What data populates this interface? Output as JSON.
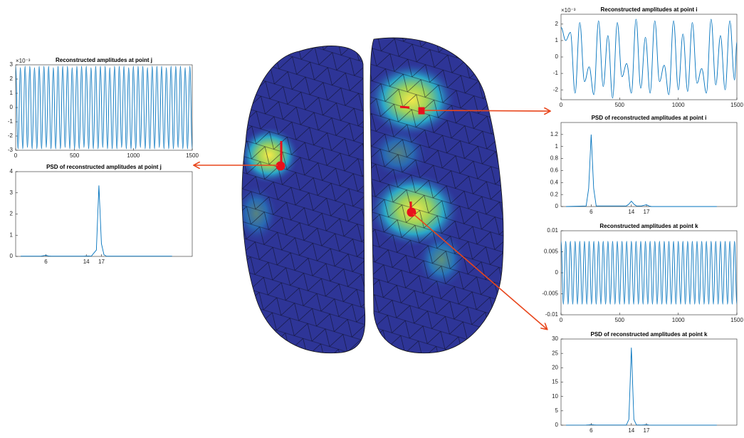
{
  "chart_data": [
    {
      "type": "line",
      "title": "Reconstructed amplitudes at point j",
      "y_exponent_label": "×10⁻³",
      "color": "#0072bd",
      "x": [
        0,
        20,
        40,
        60,
        80,
        100,
        120,
        140,
        160,
        180,
        200,
        220,
        240,
        260,
        280,
        300,
        320,
        340,
        360,
        380,
        400,
        420,
        440,
        460,
        480,
        500,
        520,
        540,
        560,
        580,
        600,
        620,
        640,
        660,
        680,
        700,
        720,
        740,
        760,
        780,
        800,
        820,
        840,
        860,
        880,
        900,
        920,
        940,
        960,
        980,
        1000,
        1020,
        1040,
        1060,
        1080,
        1100,
        1120,
        1140,
        1160,
        1180,
        1200,
        1220,
        1240,
        1260,
        1280,
        1300,
        1320,
        1340,
        1360,
        1380,
        1400,
        1420,
        1440,
        1460,
        1480,
        1500
      ],
      "values": [
        2.9,
        -2.9,
        2.8,
        -2.9,
        2.9,
        -2.8,
        2.9,
        -2.9,
        2.8,
        -2.9,
        2.9,
        -2.9,
        2.9,
        -2.8,
        2.9,
        -2.9,
        2.8,
        -2.9,
        2.9,
        -2.9,
        2.9,
        -2.8,
        2.9,
        -2.9,
        2.8,
        -2.9,
        2.9,
        -2.9,
        2.9,
        -2.8,
        2.9,
        -2.9,
        2.8,
        -2.9,
        2.9,
        -2.9,
        2.9,
        -2.8,
        2.9,
        -2.9,
        2.8,
        -2.9,
        2.9,
        -2.9,
        2.9,
        -2.8,
        2.9,
        -2.9,
        2.8,
        -2.9,
        2.9,
        -2.9,
        2.9,
        -2.8,
        2.9,
        -2.9,
        2.8,
        -2.9,
        2.9,
        -2.9,
        2.9,
        -2.8,
        2.9,
        -2.9,
        2.8,
        -2.9,
        2.9,
        -2.9,
        2.9,
        -2.8,
        2.9,
        -2.9,
        2.8,
        -2.9,
        2.9,
        -2.9
      ],
      "xlim": [
        0,
        1500
      ],
      "xticks": [
        0,
        500,
        1000,
        1500
      ],
      "ylim": [
        -3,
        3
      ],
      "yticks": [
        -3,
        -2,
        -1,
        0,
        1,
        2,
        3
      ]
    },
    {
      "type": "line",
      "title": "PSD of reconstructed amplitudes at point j",
      "color": "#0072bd",
      "x": [
        1,
        5,
        5.5,
        6,
        6.5,
        7,
        13,
        13.5,
        14,
        14.5,
        15,
        16,
        16.5,
        17,
        17.5,
        18,
        31
      ],
      "values": [
        0.01,
        0.01,
        0.03,
        0.05,
        0.02,
        0.01,
        0.01,
        0.01,
        0.02,
        0.02,
        0.01,
        0.3,
        3.35,
        0.6,
        0.08,
        0.01,
        0.01
      ],
      "xlim": [
        0,
        35
      ],
      "xticks": [
        6,
        14,
        17
      ],
      "ylim": [
        0,
        4
      ],
      "yticks": [
        0,
        1,
        2,
        3,
        4
      ]
    },
    {
      "type": "line",
      "title": "Reconstructed amplitudes at point i",
      "y_exponent_label": "×10⁻³",
      "color": "#0072bd",
      "x": [
        0,
        40,
        80,
        120,
        160,
        200,
        240,
        280,
        320,
        360,
        400,
        440,
        480,
        520,
        560,
        600,
        640,
        680,
        720,
        760,
        800,
        840,
        880,
        920,
        960,
        1000,
        1040,
        1080,
        1120,
        1160,
        1200,
        1240,
        1280,
        1320,
        1360,
        1400,
        1440,
        1480,
        1500
      ],
      "values": [
        1.8,
        1.0,
        1.5,
        -2.2,
        2.1,
        -1.5,
        -0.6,
        -2.3,
        2.2,
        -1.8,
        1.3,
        -2.5,
        2.1,
        -1.2,
        -0.4,
        -2.2,
        2.3,
        -1.9,
        1.2,
        -2.2,
        2.2,
        -1.5,
        -0.5,
        -2.3,
        2.2,
        -2.0,
        1.4,
        -2.1,
        2.1,
        -1.6,
        -0.7,
        -2.2,
        2.3,
        -1.7,
        1.3,
        -2.0,
        2.2,
        -1.4,
        0.9
      ],
      "xlim": [
        0,
        1500
      ],
      "xticks": [
        0,
        500,
        1000,
        1500
      ],
      "ylim": [
        -2.6,
        2.6
      ],
      "yticks": [
        -2,
        -1,
        0,
        1,
        2
      ]
    },
    {
      "type": "line",
      "title": "PSD of reconstructed amplitudes at point i",
      "color": "#0072bd",
      "x": [
        1,
        5,
        5.5,
        6,
        6.5,
        7,
        13,
        13.5,
        14,
        14.5,
        15,
        16,
        16.5,
        17,
        17.5,
        18,
        31
      ],
      "values": [
        0,
        0.01,
        0.3,
        1.2,
        0.3,
        0.01,
        0.01,
        0.04,
        0.09,
        0.04,
        0.01,
        0.01,
        0.02,
        0.03,
        0.01,
        0,
        0
      ],
      "xlim": [
        0,
        35
      ],
      "xticks": [
        6,
        14,
        17
      ],
      "ylim": [
        0,
        1.4
      ],
      "yticks": [
        0,
        0.2,
        0.4,
        0.6,
        0.8,
        1,
        1.2
      ]
    },
    {
      "type": "line",
      "title": "Reconstructed amplitudes at point k",
      "color": "#0072bd",
      "x": [
        0,
        20,
        40,
        60,
        80,
        100,
        120,
        140,
        160,
        180,
        200,
        220,
        240,
        260,
        280,
        300,
        320,
        340,
        360,
        380,
        400,
        420,
        440,
        460,
        480,
        500,
        520,
        540,
        560,
        580,
        600,
        620,
        640,
        660,
        680,
        700,
        720,
        740,
        760,
        780,
        800,
        820,
        840,
        860,
        880,
        900,
        920,
        940,
        960,
        980,
        1000,
        1020,
        1040,
        1060,
        1080,
        1100,
        1120,
        1140,
        1160,
        1180,
        1200,
        1220,
        1240,
        1260,
        1280,
        1300,
        1320,
        1340,
        1360,
        1380,
        1400,
        1420,
        1440,
        1460,
        1480,
        1500
      ],
      "values": [
        0.0075,
        -0.0075,
        0.0075,
        -0.0075,
        0.0075,
        -0.0075,
        0.0075,
        -0.0075,
        0.0075,
        -0.0075,
        0.0075,
        -0.0075,
        0.0075,
        -0.0075,
        0.0075,
        -0.0075,
        0.0075,
        -0.0075,
        0.0075,
        -0.0075,
        0.0075,
        -0.0075,
        0.0075,
        -0.0075,
        0.0075,
        -0.0075,
        0.0075,
        -0.0075,
        0.0075,
        -0.0075,
        0.0075,
        -0.0075,
        0.0075,
        -0.0075,
        0.0075,
        -0.0075,
        0.0075,
        -0.0075,
        0.0075,
        -0.0075,
        0.0075,
        -0.0075,
        0.0075,
        -0.0075,
        0.0075,
        -0.0075,
        0.0075,
        -0.0075,
        0.0075,
        -0.0075,
        0.0075,
        -0.0075,
        0.0075,
        -0.0075,
        0.0075,
        -0.0075,
        0.0075,
        -0.0075,
        0.0075,
        -0.0075,
        0.0075,
        -0.0075,
        0.0075,
        -0.0075,
        0.0075,
        -0.0075,
        0.0075,
        -0.0075,
        0.0075,
        -0.0075,
        0.0075,
        -0.0075,
        0.0075,
        -0.0075,
        0.0075,
        -0.0075
      ],
      "xlim": [
        0,
        1500
      ],
      "xticks": [
        0,
        500,
        1000,
        1500
      ],
      "ylim": [
        -0.01,
        0.01
      ],
      "yticks": [
        -0.01,
        -0.005,
        0,
        0.005,
        0.01
      ]
    },
    {
      "type": "line",
      "title": "PSD of reconstructed amplitudes at point k",
      "color": "#0072bd",
      "x": [
        1,
        5,
        5.5,
        6,
        6.5,
        7,
        13,
        13.5,
        14,
        14.5,
        15,
        16,
        16.5,
        17,
        17.5,
        18,
        31
      ],
      "values": [
        0.01,
        0.05,
        0.1,
        0.2,
        0.1,
        0.05,
        0.05,
        2,
        27,
        2,
        0.1,
        0.05,
        0.1,
        0.2,
        0.05,
        0.01,
        0.01
      ],
      "xlim": [
        0,
        35
      ],
      "xticks": [
        6,
        14,
        17
      ],
      "ylim": [
        0,
        30
      ],
      "yticks": [
        0,
        5,
        10,
        15,
        20,
        25,
        30
      ]
    }
  ]
}
